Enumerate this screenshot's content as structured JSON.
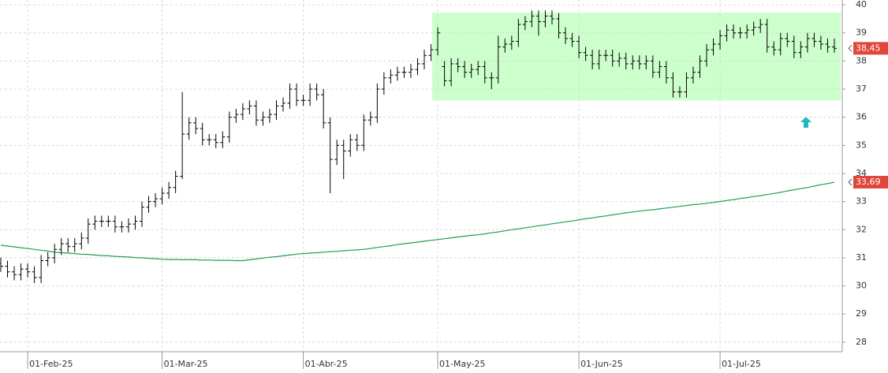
{
  "chart_data": {
    "type": "ohlc",
    "categories": [
      null,
      null,
      null,
      null,
      "01-Feb-25",
      null,
      null,
      null,
      null,
      null,
      null,
      null,
      null,
      null,
      null,
      null,
      null,
      null,
      null,
      null,
      null,
      null,
      null,
      null,
      "01-Mar-25",
      null,
      null,
      null,
      null,
      null,
      null,
      null,
      null,
      null,
      null,
      null,
      null,
      null,
      null,
      null,
      null,
      null,
      null,
      null,
      null,
      "01-Abr-25",
      null,
      null,
      null,
      null,
      null,
      null,
      null,
      null,
      null,
      null,
      null,
      null,
      null,
      null,
      null,
      null,
      null,
      null,
      null,
      "01-May-25",
      null,
      null,
      null,
      null,
      null,
      null,
      null,
      null,
      null,
      null,
      null,
      null,
      null,
      null,
      null,
      null,
      null,
      null,
      null,
      null,
      "01-Jun-25",
      null,
      null,
      null,
      null,
      null,
      null,
      null,
      null,
      null,
      null,
      null,
      null,
      null,
      null,
      null,
      null,
      null,
      null,
      null,
      null,
      "01-Jul-25",
      null,
      null,
      null,
      null,
      null,
      null,
      null,
      null,
      null,
      null,
      null,
      null,
      null,
      null,
      null,
      null,
      null
    ],
    "open": [
      30.8,
      30.7,
      30.5,
      30.4,
      30.6,
      30.5,
      30.3,
      30.9,
      31.0,
      31.3,
      31.5,
      31.4,
      31.5,
      31.7,
      32.2,
      32.3,
      32.3,
      32.3,
      32.1,
      32.1,
      32.2,
      32.3,
      32.8,
      33.0,
      33.1,
      33.3,
      33.5,
      33.9,
      35.4,
      35.8,
      35.6,
      35.2,
      35.2,
      35.1,
      35.3,
      36.0,
      36.1,
      36.3,
      36.4,
      35.9,
      36.0,
      36.1,
      36.4,
      36.5,
      37.0,
      36.6,
      36.6,
      37.0,
      36.8,
      35.8,
      34.5,
      35.0,
      34.8,
      35.2,
      35.0,
      35.9,
      36.0,
      37.0,
      37.4,
      37.5,
      37.6,
      37.6,
      37.7,
      37.9,
      38.2,
      38.4,
      37.8,
      37.3,
      37.9,
      37.8,
      37.6,
      37.7,
      37.8,
      37.4,
      37.4,
      38.5,
      38.6,
      38.7,
      39.3,
      39.4,
      39.6,
      39.4,
      39.6,
      39.5,
      39.0,
      38.8,
      38.7,
      38.3,
      38.2,
      37.9,
      38.2,
      38.2,
      38.0,
      38.1,
      37.9,
      38.0,
      37.9,
      38.0,
      37.6,
      37.8,
      37.4,
      36.9,
      36.9,
      37.4,
      37.6,
      38.0,
      38.4,
      38.6,
      38.9,
      39.1,
      39.0,
      39.0,
      39.1,
      39.2,
      39.3,
      38.5,
      38.4,
      38.8,
      38.7,
      38.3,
      38.5,
      38.8,
      38.7,
      38.6,
      38.5
    ],
    "high": [
      31.0,
      30.9,
      30.7,
      30.8,
      30.8,
      30.7,
      31.1,
      31.2,
      31.5,
      31.7,
      31.7,
      31.7,
      31.9,
      32.4,
      32.5,
      32.5,
      32.5,
      32.5,
      32.3,
      32.4,
      32.5,
      33.0,
      33.2,
      33.3,
      33.5,
      33.7,
      34.1,
      36.9,
      36.0,
      36.0,
      35.8,
      35.4,
      35.4,
      35.5,
      36.2,
      36.3,
      36.5,
      36.6,
      36.6,
      36.2,
      36.3,
      36.6,
      36.7,
      37.2,
      37.2,
      36.8,
      37.2,
      37.2,
      37.0,
      36.0,
      35.2,
      35.2,
      35.4,
      35.4,
      36.1,
      36.2,
      37.2,
      37.6,
      37.7,
      37.8,
      37.8,
      37.9,
      38.1,
      38.4,
      38.6,
      39.2,
      38.0,
      38.1,
      38.1,
      38.0,
      37.9,
      38.0,
      38.0,
      37.6,
      38.9,
      38.8,
      38.9,
      39.5,
      39.6,
      39.8,
      39.8,
      39.8,
      39.8,
      39.7,
      39.2,
      39.0,
      38.9,
      38.5,
      38.4,
      38.4,
      38.4,
      38.4,
      38.3,
      38.3,
      38.2,
      38.2,
      38.2,
      38.2,
      38.0,
      38.0,
      37.6,
      37.1,
      37.6,
      37.8,
      38.2,
      38.6,
      38.8,
      39.1,
      39.3,
      39.3,
      39.2,
      39.3,
      39.4,
      39.5,
      39.5,
      38.7,
      39.0,
      39.0,
      38.9,
      38.7,
      39.0,
      39.0,
      38.9,
      38.8,
      38.8
    ],
    "low": [
      30.5,
      30.3,
      30.2,
      30.2,
      30.3,
      30.1,
      30.1,
      30.7,
      30.8,
      31.1,
      31.2,
      31.2,
      31.3,
      31.5,
      32.0,
      32.1,
      32.1,
      31.9,
      31.9,
      31.9,
      32.0,
      32.1,
      32.6,
      32.8,
      32.9,
      33.1,
      33.3,
      33.8,
      35.2,
      35.4,
      35.0,
      35.0,
      34.9,
      34.9,
      35.1,
      35.8,
      35.9,
      36.1,
      35.7,
      35.7,
      35.8,
      35.9,
      36.2,
      36.3,
      36.4,
      36.4,
      36.4,
      36.6,
      35.6,
      33.3,
      34.3,
      33.8,
      34.6,
      34.8,
      34.8,
      35.7,
      35.8,
      36.8,
      37.2,
      37.3,
      37.4,
      37.4,
      37.5,
      37.7,
      38.0,
      38.2,
      37.1,
      37.1,
      37.6,
      37.4,
      37.4,
      37.5,
      37.2,
      37.0,
      37.2,
      38.3,
      38.4,
      38.5,
      39.1,
      39.2,
      38.9,
      39.2,
      39.3,
      38.8,
      38.6,
      38.5,
      38.1,
      38.0,
      37.7,
      37.7,
      38.0,
      37.8,
      37.8,
      37.7,
      37.7,
      37.7,
      37.7,
      37.4,
      37.4,
      37.2,
      36.7,
      36.7,
      36.7,
      37.2,
      37.4,
      37.8,
      38.2,
      38.4,
      38.7,
      38.8,
      38.8,
      38.8,
      38.9,
      39.0,
      38.3,
      38.2,
      38.2,
      38.5,
      38.1,
      38.1,
      38.3,
      38.5,
      38.4,
      38.3,
      38.3
    ],
    "close": [
      30.7,
      30.5,
      30.4,
      30.6,
      30.5,
      30.3,
      30.9,
      31.0,
      31.3,
      31.5,
      31.4,
      31.5,
      31.7,
      32.2,
      32.3,
      32.3,
      32.3,
      32.1,
      32.1,
      32.2,
      32.3,
      32.8,
      33.0,
      33.1,
      33.3,
      33.5,
      33.9,
      35.4,
      35.8,
      35.6,
      35.2,
      35.2,
      35.1,
      35.3,
      36.0,
      36.1,
      36.3,
      36.4,
      35.9,
      36.0,
      36.1,
      36.4,
      36.5,
      37.0,
      36.6,
      36.6,
      37.0,
      36.8,
      35.8,
      34.5,
      35.0,
      34.8,
      35.2,
      35.0,
      35.9,
      36.0,
      37.0,
      37.4,
      37.5,
      37.6,
      37.6,
      37.7,
      37.9,
      38.2,
      38.4,
      39.0,
      37.3,
      37.9,
      37.8,
      37.6,
      37.7,
      37.8,
      37.4,
      37.4,
      38.5,
      38.6,
      38.7,
      39.3,
      39.4,
      39.6,
      39.4,
      39.6,
      39.5,
      39.0,
      38.8,
      38.7,
      38.3,
      38.2,
      37.9,
      38.2,
      38.2,
      38.0,
      38.1,
      37.9,
      38.0,
      37.9,
      38.0,
      37.6,
      37.8,
      37.4,
      36.9,
      36.9,
      37.4,
      37.6,
      38.0,
      38.4,
      38.6,
      38.9,
      39.1,
      39.0,
      39.0,
      39.1,
      39.2,
      39.3,
      38.5,
      38.4,
      38.8,
      38.7,
      38.3,
      38.5,
      38.8,
      38.7,
      38.6,
      38.5,
      38.45
    ],
    "color": "#000000",
    "ma": {
      "color": "#1f9e50",
      "values": [
        31.45,
        31.42,
        31.39,
        31.36,
        31.33,
        31.3,
        31.27,
        31.24,
        31.2,
        31.18,
        31.17,
        31.15,
        31.13,
        31.12,
        31.1,
        31.08,
        31.07,
        31.05,
        31.04,
        31.03,
        31.01,
        31.0,
        30.98,
        30.97,
        30.95,
        30.94,
        30.94,
        30.93,
        30.93,
        30.93,
        30.92,
        30.92,
        30.91,
        30.91,
        30.91,
        30.9,
        30.9,
        30.93,
        30.96,
        30.99,
        31.02,
        31.04,
        31.07,
        31.1,
        31.13,
        31.15,
        31.17,
        31.18,
        31.2,
        31.22,
        31.23,
        31.25,
        31.27,
        31.28,
        31.3,
        31.33,
        31.37,
        31.4,
        31.43,
        31.47,
        31.5,
        31.53,
        31.56,
        31.59,
        31.62,
        31.65,
        31.68,
        31.71,
        31.74,
        31.77,
        31.8,
        31.82,
        31.85,
        31.89,
        31.92,
        31.96,
        32.0,
        32.03,
        32.07,
        32.1,
        32.14,
        32.17,
        32.21,
        32.24,
        32.28,
        32.31,
        32.35,
        32.39,
        32.42,
        32.46,
        32.49,
        32.53,
        32.56,
        32.6,
        32.63,
        32.66,
        32.69,
        32.71,
        32.74,
        32.77,
        32.8,
        32.83,
        32.86,
        32.89,
        32.91,
        32.94,
        32.97,
        33.0,
        33.04,
        33.07,
        33.11,
        33.14,
        33.18,
        33.21,
        33.25,
        33.29,
        33.33,
        33.38,
        33.42,
        33.46,
        33.5,
        33.55,
        33.6,
        33.64,
        33.69
      ]
    },
    "close_label": "38,45",
    "ma_label": "33,69",
    "label_color": "#e0463c",
    "zone": {
      "ylim": [
        36.6,
        39.72
      ],
      "color": "#ccffcc"
    },
    "ylim": [
      27.66,
      40.17
    ],
    "yticks": [
      28,
      29,
      30,
      31,
      32,
      33,
      34,
      35,
      36,
      37,
      38,
      39,
      40
    ],
    "grid": true
  }
}
